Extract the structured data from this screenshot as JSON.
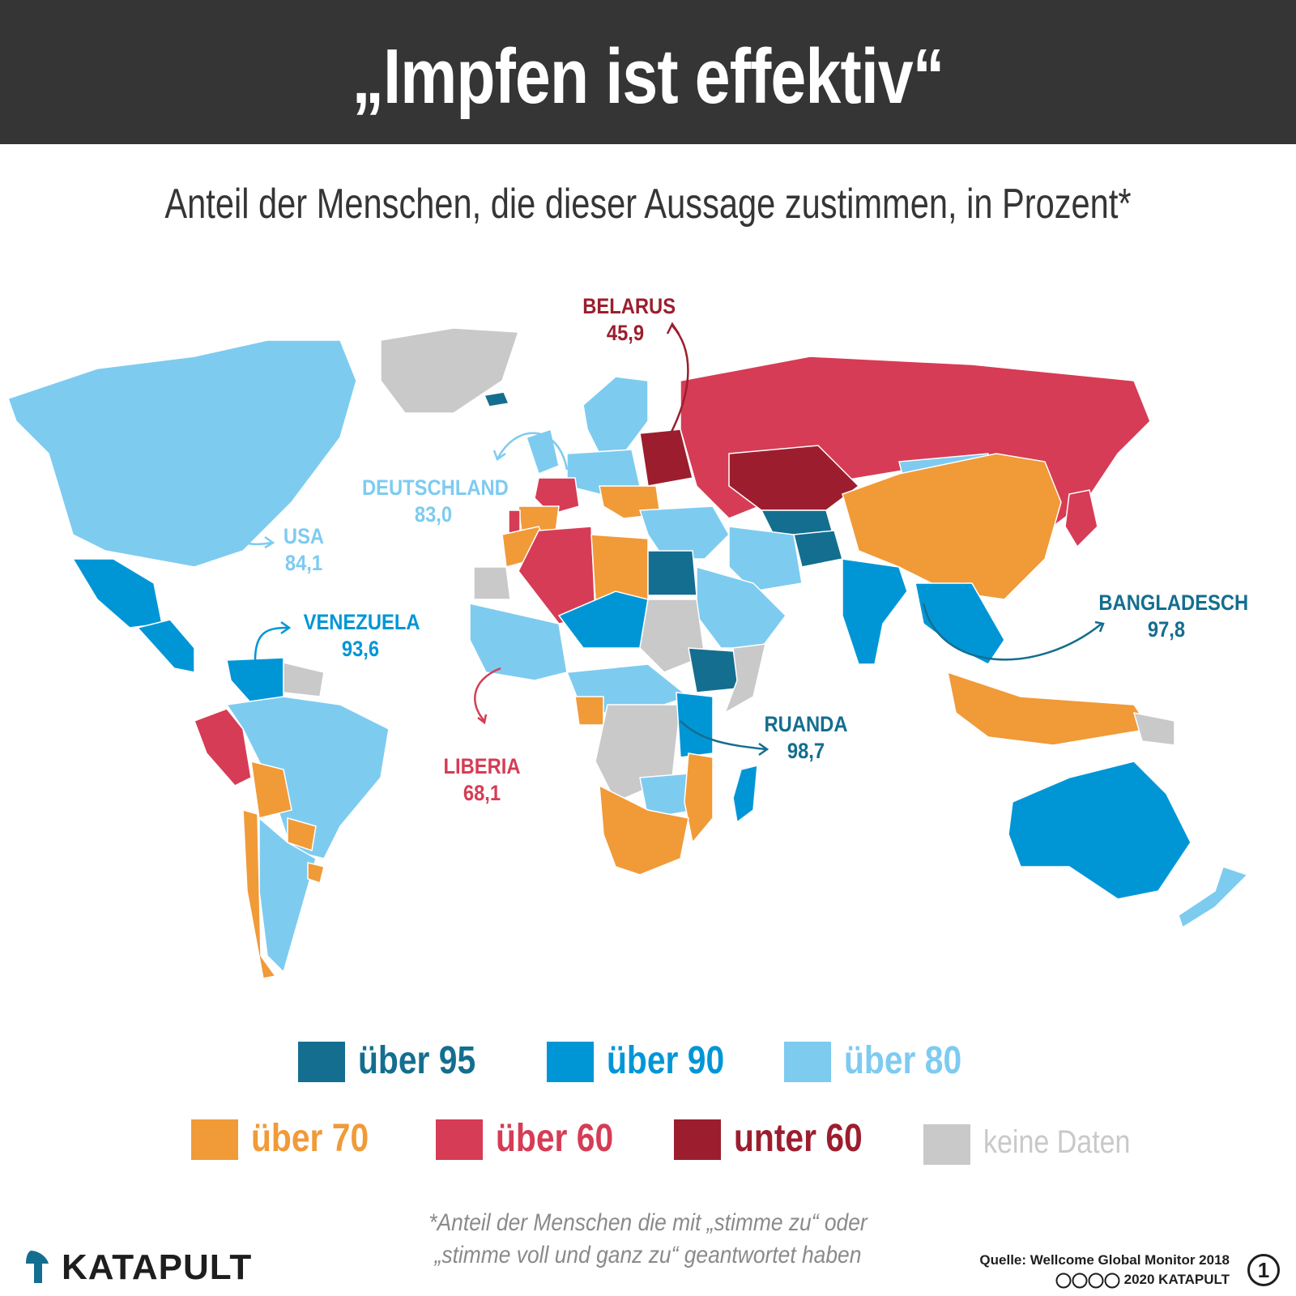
{
  "title": "„Impfen ist effektiv“",
  "subtitle": "Anteil der Menschen, die dieser Aussage zustimmen, in Prozent*",
  "colors": {
    "ueber_95": "#146e8f",
    "ueber_90": "#0096d6",
    "ueber_80": "#7ecbf0",
    "ueber_70": "#f19a38",
    "ueber_60": "#d63c55",
    "unter_60": "#9c1e2e",
    "keine_daten": "#c9c9c9",
    "header": "#353535"
  },
  "map": {
    "callouts": [
      {
        "id": "belarus",
        "name": "BELARUS",
        "value": "45,9",
        "category": "unter_60"
      },
      {
        "id": "deutschland",
        "name": "DEUTSCHLAND",
        "value": "83,0",
        "category": "ueber_80"
      },
      {
        "id": "usa",
        "name": "USA",
        "value": "84,1",
        "category": "ueber_80"
      },
      {
        "id": "venezuela",
        "name": "VENEZUELA",
        "value": "93,6",
        "category": "ueber_90"
      },
      {
        "id": "bangladesch",
        "name": "BANGLADESCH",
        "value": "97,8",
        "category": "ueber_95"
      },
      {
        "id": "ruanda",
        "name": "RUANDA",
        "value": "98,7",
        "category": "ueber_95"
      },
      {
        "id": "liberia",
        "name": "LIBERIA",
        "value": "68,1",
        "category": "ueber_60"
      }
    ],
    "region_categories": {
      "north_america": "ueber_80",
      "greenland": "keine_daten",
      "mexico": "ueber_90",
      "central_america": "ueber_90",
      "venezuela": "ueber_90",
      "guianas": "keine_daten",
      "brazil": "ueber_80",
      "peru": "ueber_60",
      "bolivia": "ueber_70",
      "paraguay": "ueber_70",
      "chile": "ueber_70",
      "argentina": "ueber_80",
      "uruguay": "ueber_70",
      "scandinavia": "ueber_80",
      "iceland": "ueber_95",
      "uk": "ueber_80",
      "france": "ueber_60",
      "spain": "ueber_70",
      "portugal": "ueber_60",
      "central_europe": "ueber_80",
      "eastern_europe": "unter_60",
      "balkans": "ueber_70",
      "russia": "ueber_60",
      "kazakhstan": "unter_60",
      "central_asia": "ueber_95",
      "afghanistan": "ueber_95",
      "mongolia": "ueber_80",
      "china": "ueber_70",
      "japan": "ueber_60",
      "turkey_mideast": "ueber_80",
      "iran": "ueber_80",
      "arabia": "ueber_80",
      "india": "ueber_90",
      "southeast_asia": "ueber_90",
      "indonesia": "ueber_70",
      "png": "keine_daten",
      "australia": "ueber_90",
      "new_zealand": "ueber_80",
      "morocco": "ueber_70",
      "algeria": "ueber_60",
      "libya": "ueber_70",
      "egypt": "ueber_95",
      "western_sahara": "keine_daten",
      "west_africa": "ueber_80",
      "niger_chad": "ueber_90",
      "sudan": "keine_daten",
      "ethiopia": "ueber_95",
      "somalia": "keine_daten",
      "central_africa": "ueber_80",
      "congo": "keine_daten",
      "gabon": "ueber_70",
      "east_africa": "ueber_90",
      "southern_africa": "ueber_70",
      "zambia_zimbabwe": "ueber_80",
      "mozambique": "ueber_70",
      "madagascar": "ueber_90"
    }
  },
  "legend": [
    {
      "key": "ueber_95",
      "label": "über 95"
    },
    {
      "key": "ueber_90",
      "label": "über 90"
    },
    {
      "key": "ueber_80",
      "label": "über 80"
    },
    {
      "key": "ueber_70",
      "label": "über 70"
    },
    {
      "key": "ueber_60",
      "label": "über 60"
    },
    {
      "key": "unter_60",
      "label": "unter 60"
    },
    {
      "key": "keine_daten",
      "label": "keine Daten"
    }
  ],
  "footnote": {
    "line1": "*Anteil der Menschen die mit „stimme zu“ oder",
    "line2": "„stimme voll und ganz zu“ geantwortet haben"
  },
  "brand": "KATAPULT",
  "source": {
    "line1": "Quelle: Wellcome Global Monitor 2018",
    "line2": "2020 KATAPULT"
  },
  "page_number": "1"
}
